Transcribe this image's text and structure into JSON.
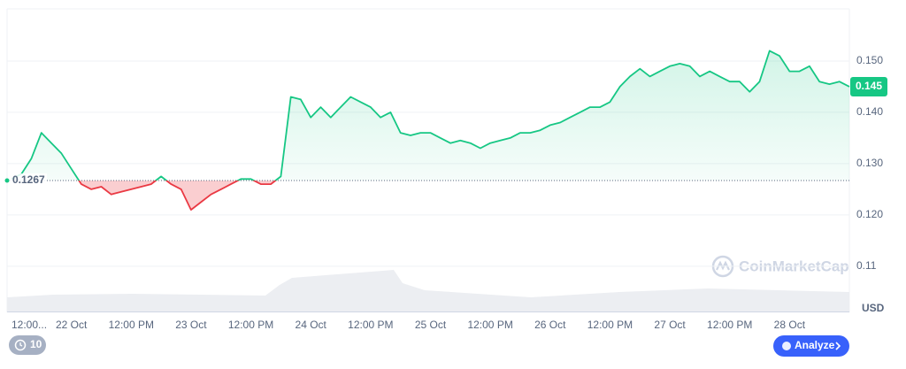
{
  "chart_data": {
    "type": "line",
    "categories": [
      "12:00...",
      null,
      null,
      null,
      null,
      null,
      "22 Oct",
      null,
      null,
      null,
      null,
      null,
      "12:00 PM",
      null,
      null,
      null,
      null,
      null,
      "23 Oct",
      null,
      null,
      null,
      null,
      null,
      "12:00 PM",
      null,
      null,
      null,
      null,
      null,
      "24 Oct",
      null,
      null,
      null,
      null,
      null,
      "12:00 PM",
      null,
      null,
      null,
      null,
      null,
      "25 Oct",
      null,
      null,
      null,
      null,
      null,
      "12:00 PM",
      null,
      null,
      null,
      null,
      null,
      "26 Oct",
      null,
      null,
      null,
      null,
      null,
      "12:00 PM",
      null,
      null,
      null,
      null,
      null,
      "27 Oct",
      null,
      null,
      null,
      null,
      null,
      "12:00 PM",
      null,
      null,
      null,
      null,
      null,
      "28 Oct",
      null,
      null,
      null,
      null,
      null,
      null
    ],
    "values": [
      0.127,
      0.128,
      0.131,
      0.136,
      0.134,
      0.132,
      0.129,
      0.126,
      0.125,
      0.1255,
      0.124,
      0.1245,
      0.125,
      0.1255,
      0.126,
      0.1275,
      0.126,
      0.125,
      0.121,
      0.1225,
      0.124,
      0.125,
      0.126,
      0.127,
      0.127,
      0.126,
      0.126,
      0.1275,
      0.143,
      0.1425,
      0.139,
      0.141,
      0.139,
      0.141,
      0.143,
      0.142,
      0.141,
      0.139,
      0.14,
      0.136,
      0.1355,
      0.136,
      0.136,
      0.135,
      0.134,
      0.1345,
      0.134,
      0.133,
      0.134,
      0.1345,
      0.135,
      0.136,
      0.136,
      0.1365,
      0.1375,
      0.138,
      0.139,
      0.14,
      0.141,
      0.141,
      0.142,
      0.145,
      0.147,
      0.1485,
      0.147,
      0.148,
      0.149,
      0.1495,
      0.149,
      0.147,
      0.148,
      0.147,
      0.146,
      0.146,
      0.144,
      0.146,
      0.152,
      0.151,
      0.148,
      0.148,
      0.149,
      0.146,
      0.1455,
      0.146,
      0.145
    ],
    "baseline": 0.1267,
    "current_price": 0.145,
    "up_color": "#16c784",
    "down_color": "#ea3943",
    "ylim": [
      0.101,
      0.16
    ],
    "yticks": [
      0.11,
      {
        "value": 0.12,
        "label": "0.120"
      },
      {
        "value": 0.13,
        "label": "0.130"
      },
      {
        "value": 0.14,
        "label": "0.140"
      },
      {
        "value": 0.15,
        "label": "0.150"
      }
    ],
    "grid": true,
    "y_unit": "USD",
    "watermark": "CoinMarketCap",
    "buttons": {
      "history": "10",
      "analyze": "Analyze"
    }
  }
}
